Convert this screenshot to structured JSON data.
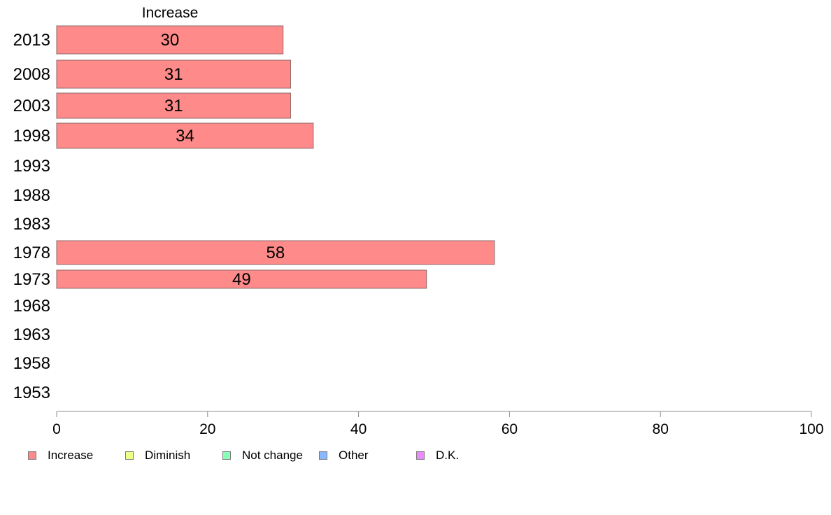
{
  "chart_data": {
    "type": "bar",
    "orientation": "horizontal",
    "title": "Increase",
    "categories": [
      "2013",
      "2008",
      "2003",
      "1998",
      "1993",
      "1988",
      "1983",
      "1978",
      "1973",
      "1968",
      "1963",
      "1958",
      "1953"
    ],
    "series": [
      {
        "name": "Increase",
        "values": [
          30,
          31,
          31,
          34,
          null,
          null,
          null,
          58,
          49,
          null,
          null,
          null,
          null
        ]
      }
    ],
    "xlim": [
      0,
      100
    ],
    "xticks": [
      0,
      20,
      40,
      60,
      80,
      100
    ],
    "grid": false,
    "legend": {
      "position": "bottom",
      "items": [
        {
          "label": "Increase",
          "color": "#ff8a8a"
        },
        {
          "label": "Diminish",
          "color": "#eeff8a"
        },
        {
          "label": "Not change",
          "color": "#8affb8"
        },
        {
          "label": "Other",
          "color": "#8ab8ff"
        },
        {
          "label": "D.K.",
          "color": "#ee8aff"
        }
      ]
    },
    "colors": {
      "bar": "#ff8a8a",
      "bar_border": "#8c6b6b",
      "axis": "#8c8c8c"
    }
  }
}
